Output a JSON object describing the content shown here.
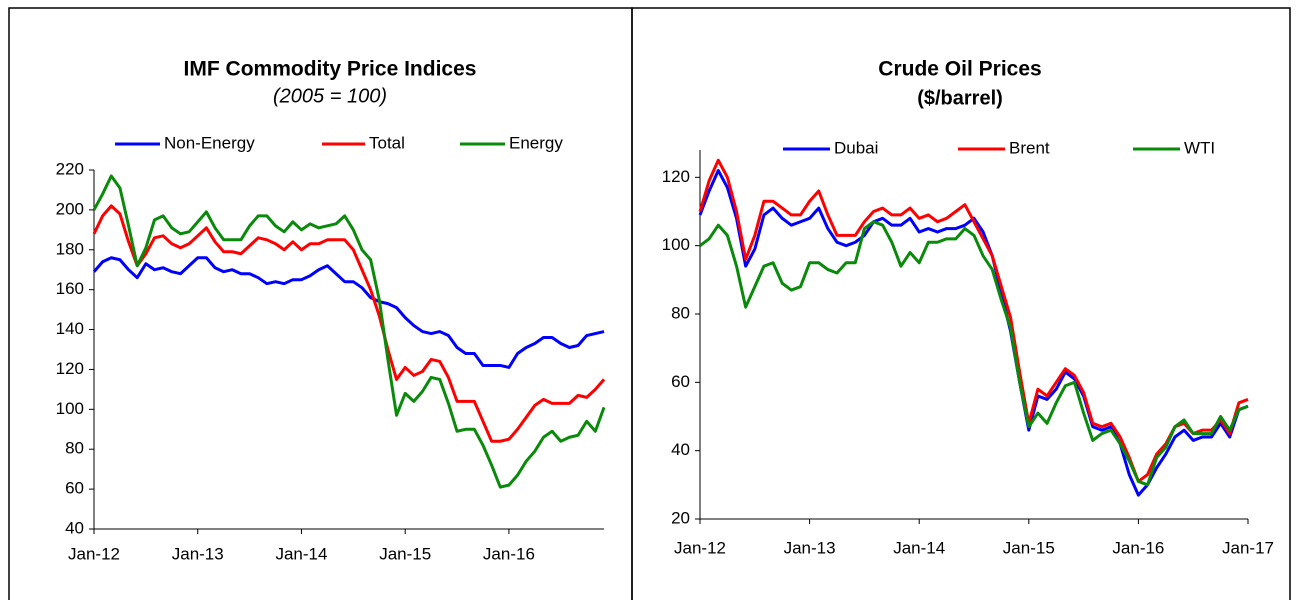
{
  "chart_data": [
    {
      "type": "line",
      "title": "IMF Commodity Price Indices",
      "subtitle": "(2005 = 100)",
      "categories": [
        "Jan-12",
        null,
        null,
        null,
        null,
        null,
        null,
        null,
        null,
        null,
        null,
        null,
        "Jan-13",
        null,
        null,
        null,
        null,
        null,
        null,
        null,
        null,
        null,
        null,
        null,
        "Jan-14",
        null,
        null,
        null,
        null,
        null,
        null,
        null,
        null,
        null,
        null,
        null,
        "Jan-15",
        null,
        null,
        null,
        null,
        null,
        null,
        null,
        null,
        null,
        null,
        null,
        "Jan-16",
        null,
        null,
        null,
        null,
        null,
        null,
        null,
        null,
        null,
        null,
        null
      ],
      "series": [
        {
          "name": "Non-Energy",
          "color": "#0000ff",
          "values": [
            169,
            174,
            176,
            175,
            170,
            166,
            173,
            170,
            171,
            169,
            168,
            172,
            176,
            176,
            171,
            169,
            170,
            168,
            168,
            166,
            163,
            164,
            163,
            165,
            165,
            167,
            170,
            172,
            168,
            164,
            164,
            161,
            156,
            154,
            153,
            151,
            146,
            142,
            139,
            138,
            139,
            137,
            131,
            128,
            128,
            122,
            122,
            122,
            121,
            128,
            131,
            133,
            136,
            136,
            133,
            131,
            132,
            137,
            138,
            139
          ]
        },
        {
          "name": "Total",
          "color": "#ff0000",
          "values": [
            188,
            197,
            202,
            198,
            184,
            172,
            178,
            186,
            187,
            183,
            181,
            183,
            187,
            191,
            184,
            179,
            179,
            178,
            182,
            186,
            185,
            183,
            180,
            184,
            180,
            183,
            183,
            185,
            185,
            185,
            180,
            170,
            160,
            147,
            130,
            115,
            121,
            117,
            119,
            125,
            124,
            116,
            104,
            104,
            104,
            94,
            84,
            84,
            85,
            90,
            96,
            102,
            105,
            103,
            103,
            103,
            107,
            106,
            110,
            115
          ]
        },
        {
          "name": "Energy",
          "color": "#0a8a0a",
          "values": [
            200,
            208,
            217,
            211,
            192,
            172,
            181,
            195,
            197,
            191,
            188,
            189,
            194,
            199,
            191,
            185,
            185,
            185,
            192,
            197,
            197,
            192,
            189,
            194,
            190,
            193,
            191,
            192,
            193,
            197,
            190,
            180,
            175,
            155,
            125,
            97,
            108,
            104,
            109,
            116,
            115,
            103,
            89,
            90,
            90,
            82,
            72,
            61,
            62,
            67,
            74,
            79,
            86,
            89,
            84,
            86,
            87,
            94,
            89,
            101
          ]
        }
      ],
      "ylim": [
        40,
        220
      ],
      "yticks": [
        40,
        60,
        80,
        100,
        120,
        140,
        160,
        180,
        200,
        220
      ]
    },
    {
      "type": "line",
      "title": "Crude Oil Prices",
      "subtitle": "($/barrel)",
      "categories": [
        "Jan-12",
        null,
        null,
        null,
        null,
        null,
        null,
        null,
        null,
        null,
        null,
        null,
        "Jan-13",
        null,
        null,
        null,
        null,
        null,
        null,
        null,
        null,
        null,
        null,
        null,
        "Jan-14",
        null,
        null,
        null,
        null,
        null,
        null,
        null,
        null,
        null,
        null,
        null,
        "Jan-15",
        null,
        null,
        null,
        null,
        null,
        null,
        null,
        null,
        null,
        null,
        null,
        "Jan-16",
        null,
        null,
        null,
        null,
        null,
        null,
        null,
        null,
        null,
        null,
        null,
        "Jan-17"
      ],
      "series": [
        {
          "name": "Dubai",
          "color": "#0000ff",
          "values": [
            109,
            116,
            122,
            117,
            108,
            94,
            99,
            109,
            111,
            108,
            106,
            107,
            108,
            111,
            105,
            101,
            100,
            101,
            103,
            107,
            108,
            106,
            106,
            108,
            104,
            105,
            104,
            105,
            105,
            106,
            108,
            104,
            97,
            86,
            75,
            60,
            46,
            56,
            55,
            58,
            63,
            61,
            56,
            47,
            46,
            47,
            42,
            33,
            27,
            30,
            35,
            39,
            44,
            46,
            43,
            44,
            44,
            48,
            44,
            52,
            53
          ]
        },
        {
          "name": "Brent",
          "color": "#ff0000",
          "values": [
            110,
            119,
            125,
            120,
            110,
            96,
            103,
            113,
            113,
            111,
            109,
            109,
            113,
            116,
            109,
            103,
            103,
            103,
            107,
            110,
            111,
            109,
            109,
            111,
            108,
            109,
            107,
            108,
            110,
            112,
            107,
            102,
            97,
            88,
            79,
            63,
            48,
            58,
            56,
            60,
            64,
            62,
            57,
            48,
            47,
            48,
            44,
            38,
            31,
            33,
            39,
            42,
            47,
            48,
            45,
            46,
            46,
            49,
            45,
            54,
            55
          ]
        },
        {
          "name": "WTI",
          "color": "#0a8a0a",
          "values": [
            100,
            102,
            106,
            103,
            94,
            82,
            88,
            94,
            95,
            89,
            87,
            88,
            95,
            95,
            93,
            92,
            95,
            95,
            105,
            107,
            106,
            101,
            94,
            98,
            95,
            101,
            101,
            102,
            102,
            105,
            103,
            97,
            93,
            84,
            76,
            60,
            47,
            51,
            48,
            54,
            59,
            60,
            51,
            43,
            45,
            46,
            42,
            37,
            31,
            30,
            38,
            41,
            47,
            49,
            45,
            45,
            45,
            50,
            46,
            52,
            53
          ]
        }
      ],
      "ylim": [
        20,
        128
      ],
      "yticks": [
        20,
        40,
        60,
        80,
        100,
        120
      ]
    }
  ]
}
